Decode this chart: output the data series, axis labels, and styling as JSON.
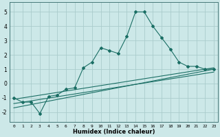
{
  "xlabel": "Humidex (Indice chaleur)",
  "ylabel": "",
  "bg_color": "#cce8e8",
  "grid_color": "#aacccc",
  "line_color": "#1a6e64",
  "xlim": [
    -0.5,
    23.5
  ],
  "ylim": [
    -2.7,
    5.7
  ],
  "yticks": [
    -2,
    -1,
    0,
    1,
    2,
    3,
    4,
    5
  ],
  "xticks": [
    0,
    1,
    2,
    3,
    4,
    5,
    6,
    7,
    8,
    9,
    10,
    11,
    12,
    13,
    14,
    15,
    16,
    17,
    18,
    19,
    20,
    21,
    22,
    23
  ],
  "line1_x": [
    0,
    1,
    2,
    3,
    4,
    5,
    6,
    7,
    8,
    9,
    10,
    11,
    12,
    13,
    14,
    15,
    16,
    17,
    18,
    19,
    20,
    21,
    22,
    23
  ],
  "line1_y": [
    -1.0,
    -1.3,
    -1.3,
    -2.1,
    -0.9,
    -0.8,
    -0.4,
    -0.3,
    1.1,
    1.5,
    2.5,
    2.3,
    2.1,
    3.3,
    5.0,
    5.0,
    4.0,
    3.2,
    2.4,
    1.5,
    1.2,
    1.2,
    1.0,
    1.0
  ],
  "line2_x": [
    0,
    23
  ],
  "line2_y": [
    -1.1,
    1.1
  ],
  "line3_x": [
    0,
    23
  ],
  "line3_y": [
    -1.4,
    0.8
  ],
  "line4_x": [
    0,
    23
  ],
  "line4_y": [
    -1.7,
    1.0
  ]
}
